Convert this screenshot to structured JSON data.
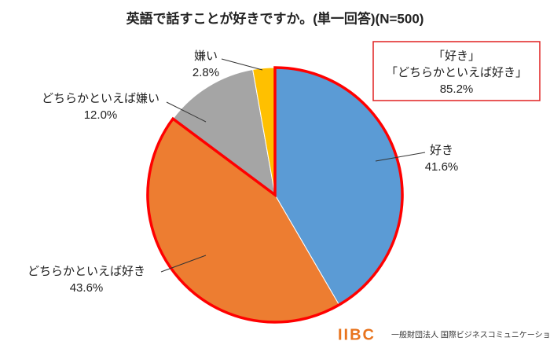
{
  "chart_data": {
    "type": "pie",
    "title": "英語で話すことが好きですか。(単一回答)(N=500)",
    "categories": [
      "好き",
      "どちらかといえば好き",
      "どちらかといえば嫌い",
      "嫌い"
    ],
    "values": [
      41.6,
      43.6,
      12.0,
      2.8
    ],
    "value_labels": [
      "41.6%",
      "43.6%",
      "12.0%",
      "2.8%"
    ],
    "colors": [
      "#5b9bd5",
      "#ed7d31",
      "#a5a5a5",
      "#ffc000"
    ],
    "highlight": [
      0,
      1
    ],
    "highlight_color": "#ff0000",
    "annotation": [
      "「好き」",
      "「どちらかといえば好き」",
      "85.2%"
    ],
    "logo": {
      "mark": "IIBC",
      "text": "一般財団法人 国際ビジネスコミュニケーション協会"
    }
  }
}
